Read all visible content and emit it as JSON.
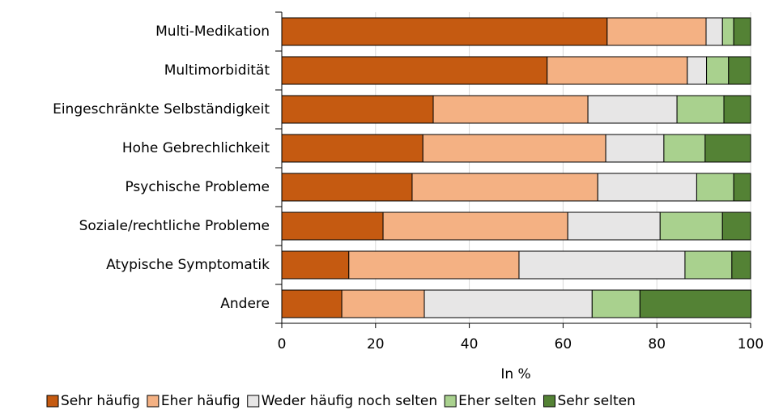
{
  "chart_data": {
    "type": "stacked-bar-horizontal",
    "categories": [
      "Multi-Medikation",
      "Multimorbidität",
      "Eingeschränkte Selbständigkeit",
      "Hohe Gebrechlichkeit",
      "Psychische Probleme",
      "Soziale/rechtliche Probleme",
      "Atypische Symptomatik",
      "Andere"
    ],
    "series": [
      {
        "name": "Sehr häufig",
        "color": "#c55a11",
        "values": [
          69.4,
          56.6,
          32.3,
          30.1,
          27.8,
          21.6,
          14.3,
          12.8
        ]
      },
      {
        "name": "Eher häufig",
        "color": "#f4b183",
        "values": [
          21.1,
          29.9,
          33.0,
          39.0,
          39.6,
          39.4,
          36.3,
          17.6
        ]
      },
      {
        "name": "Weder häufig noch selten",
        "color": "#e7e6e6",
        "values": [
          3.5,
          4.1,
          19.0,
          12.4,
          21.1,
          19.7,
          35.4,
          35.8
        ]
      },
      {
        "name": "Eher selten",
        "color": "#a9d18e",
        "values": [
          2.4,
          4.7,
          10.0,
          8.8,
          7.9,
          13.3,
          10.0,
          10.2
        ]
      },
      {
        "name": "Sehr selten",
        "color": "#548235",
        "values": [
          3.6,
          4.7,
          5.7,
          9.7,
          3.6,
          6.0,
          4.0,
          23.7
        ]
      }
    ],
    "x_label": "In %",
    "xlim": [
      0,
      100
    ],
    "xticks": [
      0,
      20,
      40,
      60,
      80,
      100
    ],
    "grid": true,
    "legend": "bottom"
  }
}
